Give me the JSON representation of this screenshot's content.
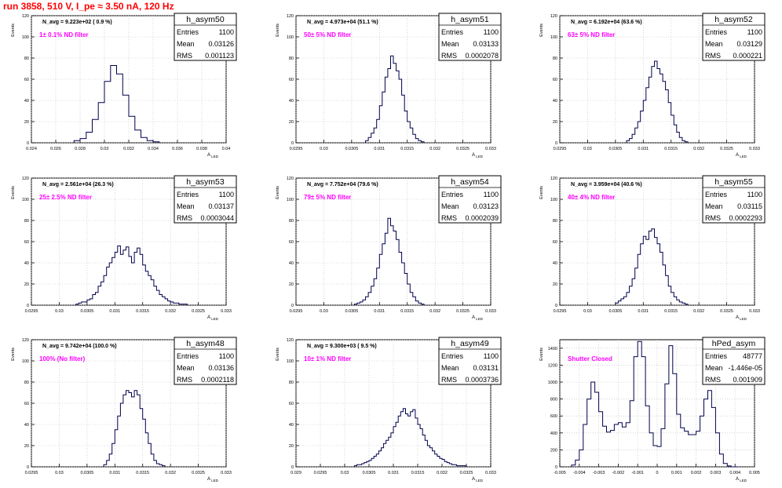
{
  "run_title": "run 3858,   510 V, I_pe ≈ 3.50 nA, 120 Hz",
  "stat_labels": {
    "entries": "Entries",
    "mean": "Mean",
    "rms": "RMS"
  },
  "chart_data": [
    {
      "type": "histogram",
      "name": "h_asym50",
      "ylabel": "Events",
      "xlabel": "A_LED",
      "navg": "N_avg = 9.223e+02 ( 0.9 %)",
      "filter": "1± 0.1% ND filter",
      "entries": "1100",
      "mean": "0.03126",
      "rms": "0.001123",
      "xlim": [
        0.024,
        0.04
      ],
      "ylim": [
        0,
        120
      ],
      "xticks": [
        0.024,
        0.026,
        0.028,
        0.03,
        0.032,
        0.034,
        0.036,
        0.038,
        0.04
      ],
      "xtick_labels": [
        "0.024",
        "0.026",
        "0.028",
        "0.03",
        "0.032",
        "0.034",
        "0.036",
        "0.038",
        "0.04"
      ],
      "yticks": [
        0,
        20,
        40,
        60,
        80,
        100,
        120
      ],
      "ytick_labels": [
        "0",
        "20",
        "40",
        "60",
        "80",
        "100",
        "120"
      ],
      "bin_edges": [
        0.0275,
        0.028,
        0.0285,
        0.029,
        0.0295,
        0.03,
        0.0305,
        0.031,
        0.0315,
        0.032,
        0.0325,
        0.033,
        0.0335,
        0.034,
        0.0345
      ],
      "counts": [
        2,
        4,
        10,
        22,
        38,
        58,
        73,
        65,
        45,
        25,
        12,
        5,
        2,
        1
      ]
    },
    {
      "type": "histogram",
      "name": "h_asym51",
      "ylabel": "Events",
      "xlabel": "A_LED",
      "navg": "N_avg = 4.973e+04 (51.1 %)",
      "filter": "50± 5% ND filter",
      "entries": "1100",
      "mean": "0.03133",
      "rms": "0.0002078",
      "xlim": [
        0.0295,
        0.033
      ],
      "ylim": [
        0,
        120
      ],
      "xticks": [
        0.0295,
        0.03,
        0.0305,
        0.031,
        0.0315,
        0.032,
        0.0325,
        0.033
      ],
      "xtick_labels": [
        "0.0295",
        "0.03",
        "0.0305",
        "0.031",
        "0.0315",
        "0.032",
        "0.0325",
        "0.033"
      ],
      "yticks": [
        0,
        20,
        40,
        60,
        80,
        100,
        120
      ],
      "ytick_labels": [
        "0",
        "20",
        "40",
        "60",
        "80",
        "100",
        "120"
      ],
      "bin_edges": [
        0.03075,
        0.0308,
        0.03085,
        0.0309,
        0.03095,
        0.031,
        0.03105,
        0.0311,
        0.03115,
        0.0312,
        0.03125,
        0.0313,
        0.03135,
        0.0314,
        0.03145,
        0.0315,
        0.03155,
        0.0316,
        0.03165,
        0.0317,
        0.03175,
        0.0318
      ],
      "counts": [
        2,
        5,
        9,
        14,
        22,
        35,
        48,
        62,
        70,
        82,
        75,
        68,
        60,
        45,
        30,
        20,
        14,
        8,
        4,
        2,
        1
      ]
    },
    {
      "type": "histogram",
      "name": "h_asym52",
      "ylabel": "Events",
      "xlabel": "A_LED",
      "navg": "N_avg = 6.192e+04 (63.6 %)",
      "filter": "63± 5% ND filter",
      "entries": "1100",
      "mean": "0.03129",
      "rms": "0.000221",
      "xlim": [
        0.0295,
        0.033
      ],
      "ylim": [
        0,
        120
      ],
      "xticks": [
        0.0295,
        0.03,
        0.0305,
        0.031,
        0.0315,
        0.032,
        0.0325,
        0.033
      ],
      "xtick_labels": [
        "0.0295",
        "0.03",
        "0.0305",
        "0.031",
        "0.0315",
        "0.032",
        "0.0325",
        "0.033"
      ],
      "yticks": [
        0,
        20,
        40,
        60,
        80,
        100,
        120
      ],
      "ytick_labels": [
        "0",
        "20",
        "40",
        "60",
        "80",
        "100",
        "120"
      ],
      "bin_edges": [
        0.0307,
        0.03075,
        0.0308,
        0.03085,
        0.0309,
        0.03095,
        0.031,
        0.03105,
        0.0311,
        0.03115,
        0.0312,
        0.03125,
        0.0313,
        0.03135,
        0.0314,
        0.03145,
        0.0315,
        0.03155,
        0.0316,
        0.03165,
        0.0317,
        0.03175,
        0.0318
      ],
      "counts": [
        2,
        4,
        8,
        14,
        20,
        30,
        40,
        52,
        62,
        72,
        77,
        70,
        65,
        58,
        50,
        38,
        26,
        17,
        10,
        5,
        2,
        1
      ]
    },
    {
      "type": "histogram",
      "name": "h_asym53",
      "ylabel": "Events",
      "xlabel": "A_LED",
      "navg": "N_avg = 2.561e+04 (26.3 %)",
      "filter": "25± 2.5% ND filter",
      "entries": "1100",
      "mean": "0.03137",
      "rms": "0.0003044",
      "xlim": [
        0.0295,
        0.033
      ],
      "ylim": [
        0,
        120
      ],
      "xticks": [
        0.0295,
        0.03,
        0.0305,
        0.031,
        0.0315,
        0.032,
        0.0325,
        0.033
      ],
      "xtick_labels": [
        "0.0295",
        "0.03",
        "0.0305",
        "0.031",
        "0.0315",
        "0.032",
        "0.0325",
        "0.033"
      ],
      "yticks": [
        0,
        20,
        40,
        60,
        80,
        100,
        120
      ],
      "ytick_labels": [
        "0",
        "20",
        "40",
        "60",
        "80",
        "100",
        "120"
      ],
      "bin_edges": [
        0.0303,
        0.03035,
        0.0304,
        0.03045,
        0.0305,
        0.03055,
        0.0306,
        0.03065,
        0.0307,
        0.03075,
        0.0308,
        0.03085,
        0.0309,
        0.03095,
        0.031,
        0.03105,
        0.0311,
        0.03115,
        0.0312,
        0.03125,
        0.0313,
        0.03135,
        0.0314,
        0.03145,
        0.0315,
        0.03155,
        0.0316,
        0.03165,
        0.0317,
        0.03175,
        0.0318,
        0.03185,
        0.0319,
        0.03195,
        0.032,
        0.03205,
        0.0321,
        0.03215,
        0.0322,
        0.03225,
        0.0323
      ],
      "counts": [
        1,
        2,
        3,
        3,
        5,
        6,
        10,
        12,
        18,
        22,
        28,
        36,
        40,
        45,
        50,
        56,
        48,
        52,
        55,
        46,
        40,
        50,
        54,
        48,
        38,
        32,
        28,
        24,
        18,
        14,
        10,
        8,
        6,
        4,
        3,
        2,
        2,
        1,
        1,
        1
      ]
    },
    {
      "type": "histogram",
      "name": "h_asym54",
      "ylabel": "Events",
      "xlabel": "A_LED",
      "navg": "N_avg = 7.752e+04 (79.6 %)",
      "filter": "79± 5% ND filter",
      "entries": "1100",
      "mean": "0.03123",
      "rms": "0.0002039",
      "xlim": [
        0.0295,
        0.033
      ],
      "ylim": [
        0,
        120
      ],
      "xticks": [
        0.0295,
        0.03,
        0.0305,
        0.031,
        0.0315,
        0.032,
        0.0325,
        0.033
      ],
      "xtick_labels": [
        "0.0295",
        "0.03",
        "0.0305",
        "0.031",
        "0.0315",
        "0.032",
        "0.0325",
        "0.033"
      ],
      "yticks": [
        0,
        20,
        40,
        60,
        80,
        100,
        120
      ],
      "ytick_labels": [
        "0",
        "20",
        "40",
        "60",
        "80",
        "100",
        "120"
      ],
      "bin_edges": [
        0.03055,
        0.0306,
        0.03065,
        0.0307,
        0.03075,
        0.0308,
        0.03085,
        0.0309,
        0.03095,
        0.031,
        0.03105,
        0.0311,
        0.03115,
        0.0312,
        0.03125,
        0.0313,
        0.03135,
        0.0314,
        0.03145,
        0.0315,
        0.03155,
        0.0316,
        0.03165,
        0.0317,
        0.03175,
        0.0318
      ],
      "counts": [
        1,
        2,
        3,
        5,
        8,
        12,
        18,
        25,
        35,
        48,
        58,
        68,
        82,
        75,
        70,
        62,
        50,
        40,
        30,
        20,
        12,
        8,
        4,
        2,
        1
      ]
    },
    {
      "type": "histogram",
      "name": "h_asym55",
      "ylabel": "Events",
      "xlabel": "A_LED",
      "navg": "N_avg = 3.959e+04 (40.6 %)",
      "filter": "40± 4% ND filter",
      "entries": "1100",
      "mean": "0.03115",
      "rms": "0.0002293",
      "xlim": [
        0.0295,
        0.033
      ],
      "ylim": [
        0,
        120
      ],
      "xticks": [
        0.0295,
        0.03,
        0.0305,
        0.031,
        0.0315,
        0.032,
        0.0325,
        0.033
      ],
      "xtick_labels": [
        "0.0295",
        "0.03",
        "0.0305",
        "0.031",
        "0.0315",
        "0.032",
        "0.0325",
        "0.033"
      ],
      "yticks": [
        0,
        20,
        40,
        60,
        80,
        100,
        120
      ],
      "ytick_labels": [
        "0",
        "20",
        "40",
        "60",
        "80",
        "100",
        "120"
      ],
      "bin_edges": [
        0.0305,
        0.03055,
        0.0306,
        0.03065,
        0.0307,
        0.03075,
        0.0308,
        0.03085,
        0.0309,
        0.03095,
        0.031,
        0.03105,
        0.0311,
        0.03115,
        0.0312,
        0.03125,
        0.0313,
        0.03135,
        0.0314,
        0.03145,
        0.0315,
        0.03155,
        0.0316,
        0.03165,
        0.0317,
        0.03175,
        0.0318
      ],
      "counts": [
        2,
        4,
        6,
        8,
        12,
        18,
        25,
        35,
        48,
        58,
        65,
        62,
        70,
        72,
        64,
        58,
        50,
        38,
        28,
        18,
        12,
        8,
        5,
        3,
        2,
        1
      ]
    },
    {
      "type": "histogram",
      "name": "h_asym48",
      "ylabel": "Events",
      "xlabel": "A_LED",
      "navg": "N_avg = 9.742e+04 (100.0 %)",
      "filter": "100% (No filter)",
      "entries": "1100",
      "mean": "0.03136",
      "rms": "0.0002118",
      "xlim": [
        0.0295,
        0.033
      ],
      "ylim": [
        0,
        120
      ],
      "xticks": [
        0.0295,
        0.03,
        0.0305,
        0.031,
        0.0315,
        0.032,
        0.0325,
        0.033
      ],
      "xtick_labels": [
        "0.0295",
        "0.03",
        "0.0305",
        "0.031",
        "0.0315",
        "0.032",
        "0.0325",
        "0.033"
      ],
      "yticks": [
        0,
        20,
        40,
        60,
        80,
        100,
        120
      ],
      "ytick_labels": [
        "0",
        "20",
        "40",
        "60",
        "80",
        "100",
        "120"
      ],
      "bin_edges": [
        0.0308,
        0.03085,
        0.0309,
        0.03095,
        0.031,
        0.03105,
        0.0311,
        0.03115,
        0.0312,
        0.03125,
        0.0313,
        0.03135,
        0.0314,
        0.03145,
        0.0315,
        0.03155,
        0.0316,
        0.03165,
        0.0317,
        0.03175,
        0.0318,
        0.03185,
        0.0319
      ],
      "counts": [
        2,
        6,
        12,
        22,
        35,
        48,
        60,
        68,
        72,
        70,
        66,
        72,
        68,
        55,
        45,
        32,
        22,
        12,
        6,
        3,
        2,
        1
      ]
    },
    {
      "type": "histogram",
      "name": "h_asym49",
      "ylabel": "Events",
      "xlabel": "A_LED",
      "navg": "N_avg = 9.300e+03 ( 9.5 %)",
      "filter": "10± 1% ND filter",
      "entries": "1100",
      "mean": "0.03131",
      "rms": "0.0003736",
      "xlim": [
        0.029,
        0.033
      ],
      "ylim": [
        0,
        120
      ],
      "xticks": [
        0.029,
        0.0295,
        0.03,
        0.0305,
        0.031,
        0.0315,
        0.032,
        0.0325,
        0.033
      ],
      "xtick_labels": [
        "0.029",
        "0.0295",
        "0.03",
        "0.0305",
        "0.031",
        "0.0315",
        "0.032",
        "0.0325",
        "0.033"
      ],
      "yticks": [
        0,
        20,
        40,
        60,
        80,
        100,
        120
      ],
      "ytick_labels": [
        "0",
        "20",
        "40",
        "60",
        "80",
        "100",
        "120"
      ],
      "bin_edges": [
        0.0302,
        0.03025,
        0.0303,
        0.03035,
        0.0304,
        0.03045,
        0.0305,
        0.03055,
        0.0306,
        0.03065,
        0.0307,
        0.03075,
        0.0308,
        0.03085,
        0.0309,
        0.03095,
        0.031,
        0.03105,
        0.0311,
        0.03115,
        0.0312,
        0.03125,
        0.0313,
        0.03135,
        0.0314,
        0.03145,
        0.0315,
        0.03155,
        0.0316,
        0.03165,
        0.0317,
        0.03175,
        0.0318,
        0.03185,
        0.0319,
        0.03195,
        0.032,
        0.03205,
        0.0321,
        0.03215,
        0.0322,
        0.03225,
        0.0323,
        0.03235,
        0.0324,
        0.03245,
        0.0325
      ],
      "counts": [
        1,
        2,
        2,
        3,
        4,
        5,
        6,
        8,
        10,
        12,
        15,
        18,
        22,
        25,
        28,
        32,
        38,
        42,
        48,
        52,
        55,
        50,
        48,
        52,
        54,
        46,
        40,
        36,
        30,
        25,
        20,
        18,
        15,
        12,
        10,
        8,
        7,
        5,
        4,
        3,
        2,
        2,
        1,
        1,
        1,
        1
      ]
    },
    {
      "type": "histogram",
      "name": "hPed_asym",
      "ylabel": "Events",
      "xlabel": "A_LED",
      "navg": "",
      "filter": "Shutter Closed",
      "entries": "48777",
      "mean": "-1.446e-05",
      "rms": "0.001909",
      "xlim": [
        -0.005,
        0.005
      ],
      "ylim": [
        0,
        1500
      ],
      "xticks": [
        -0.005,
        -0.004,
        -0.003,
        -0.002,
        -0.001,
        0,
        0.001,
        0.002,
        0.003,
        0.004,
        0.005
      ],
      "xtick_labels": [
        "-0.005",
        "-0.004",
        "-0.003",
        "-0.002",
        "-0.001",
        "0",
        "0.001",
        "0.002",
        "0.003",
        "0.004",
        "0.005"
      ],
      "yticks": [
        0,
        200,
        400,
        600,
        800,
        1000,
        1200,
        1400
      ],
      "ytick_labels": [
        "0",
        "200",
        "400",
        "600",
        "800",
        "1000",
        "1200",
        "1400"
      ],
      "bin_edges": [
        -0.0044,
        -0.0042,
        -0.004,
        -0.0038,
        -0.0036,
        -0.0034,
        -0.0032,
        -0.003,
        -0.0028,
        -0.0026,
        -0.0024,
        -0.0022,
        -0.002,
        -0.0018,
        -0.0016,
        -0.0014,
        -0.0012,
        -0.001,
        -0.0008,
        -0.0006,
        -0.0004,
        -0.0002,
        0,
        0.0002,
        0.0004,
        0.0006,
        0.0008,
        0.001,
        0.0012,
        0.0014,
        0.0016,
        0.0018,
        0.002,
        0.0022,
        0.0024,
        0.0026,
        0.0028,
        0.003,
        0.0032,
        0.0034,
        0.0036,
        0.0038,
        0.004,
        0.0042
      ],
      "counts": [
        20,
        80,
        200,
        500,
        800,
        1000,
        880,
        650,
        480,
        410,
        430,
        500,
        520,
        470,
        520,
        780,
        1300,
        1480,
        1300,
        720,
        400,
        250,
        240,
        450,
        980,
        1430,
        1100,
        620,
        460,
        420,
        380,
        380,
        420,
        600,
        800,
        900,
        700,
        400,
        150,
        40,
        10,
        0,
        0
      ]
    }
  ]
}
